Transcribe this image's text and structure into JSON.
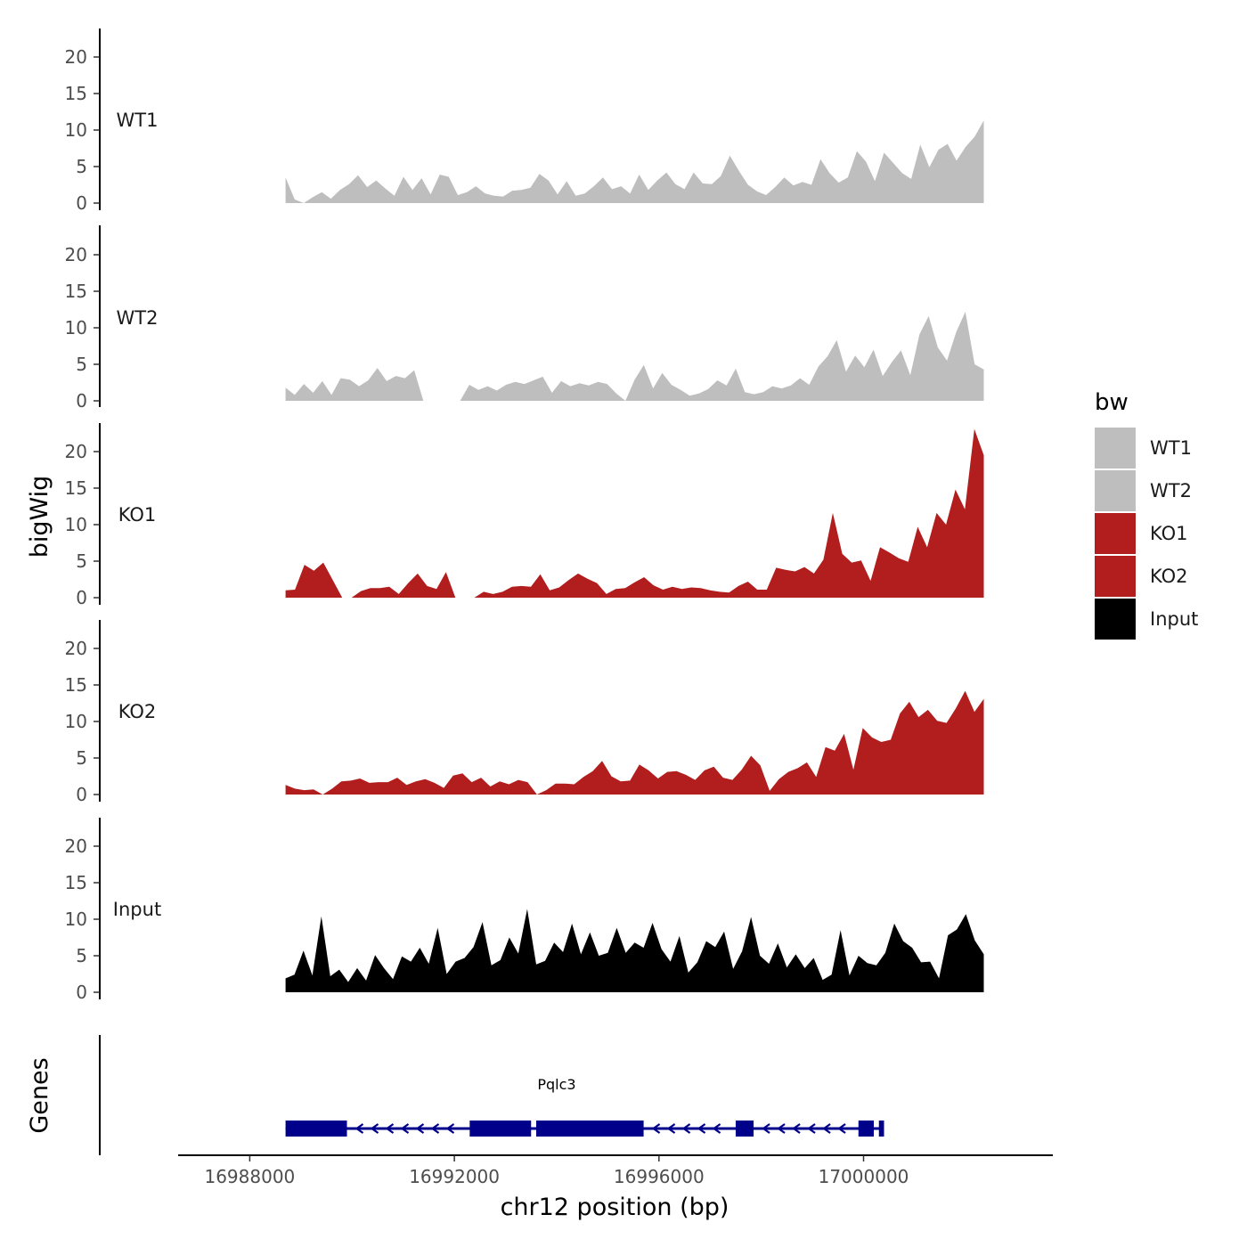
{
  "chart_data": {
    "type": "area",
    "chromosome": "chr12",
    "xlabel": "chr12 position (bp)",
    "ylabel": "bigWig",
    "xlim": [
      16986600,
      17003700
    ],
    "x_ticks": [
      16988000,
      16992000,
      16996000,
      17000000
    ],
    "x_tick_labels": [
      "16988000",
      "16992000",
      "16996000",
      "17000000"
    ],
    "ylim": [
      0,
      24
    ],
    "y_ticks": [
      0,
      5,
      10,
      15,
      20
    ],
    "y_tick_labels": [
      "0",
      "5",
      "10",
      "15",
      "20"
    ],
    "region": [
      16988700,
      17002350
    ],
    "legend": {
      "title": "bw",
      "entries": [
        {
          "label": "WT1",
          "color": "#bebebe"
        },
        {
          "label": "WT2",
          "color": "#bebebe"
        },
        {
          "label": "KO1",
          "color": "#b21e1e"
        },
        {
          "label": "KO2",
          "color": "#b21e1e"
        },
        {
          "label": "Input",
          "color": "#000000"
        }
      ]
    },
    "series": [
      {
        "name": "WT1",
        "color": "#bebebe",
        "values": [
          3.5,
          0.5,
          0,
          0.8,
          1.5,
          0.6,
          1.8,
          2.6,
          3.8,
          2.2,
          3.1,
          2.0,
          1.0,
          3.6,
          1.8,
          3.4,
          1.2,
          3.9,
          3.6,
          1.1,
          1.5,
          2.3,
          1.3,
          1.0,
          0.9,
          1.7,
          1.8,
          2.1,
          4.0,
          3.1,
          1.2,
          3.0,
          1.0,
          1.3,
          2.3,
          3.5,
          1.9,
          2.3,
          1.3,
          3.9,
          1.8,
          3.1,
          4.2,
          2.6,
          1.9,
          4.2,
          2.7,
          2.6,
          3.7,
          6.5,
          4.4,
          2.5,
          1.6,
          1.1,
          2.2,
          3.5,
          2.4,
          2.9,
          2.5,
          6.0,
          4.1,
          2.8,
          3.5,
          7.1,
          5.7,
          3.0,
          6.9,
          5.5,
          4.1,
          3.3,
          8.0,
          4.9,
          7.3,
          8.1,
          5.8,
          7.7,
          9.1,
          11.3
        ]
      },
      {
        "name": "WT2",
        "color": "#bebebe",
        "values": [
          1.8,
          0.8,
          2.3,
          1.1,
          2.7,
          0.8,
          3.1,
          2.9,
          2.0,
          2.8,
          4.5,
          2.7,
          3.4,
          3.1,
          4.2,
          0,
          0,
          0,
          0,
          0,
          2.2,
          1.5,
          2.0,
          1.4,
          2.2,
          2.6,
          2.3,
          2.8,
          3.3,
          1.1,
          2.7,
          2.0,
          2.4,
          2.1,
          2.6,
          2.3,
          1.0,
          0,
          2.9,
          4.9,
          1.7,
          3.8,
          2.2,
          1.5,
          0.7,
          1.0,
          1.6,
          2.8,
          2.1,
          4.4,
          1.2,
          0.9,
          1.2,
          2.0,
          1.7,
          2.1,
          3.1,
          2.2,
          4.7,
          6.1,
          8.3,
          4.0,
          6.2,
          4.6,
          7.0,
          3.4,
          5.3,
          6.9,
          3.5,
          9.1,
          11.6,
          7.3,
          5.5,
          9.4,
          12.2,
          5.0,
          4.3
        ]
      },
      {
        "name": "KO1",
        "color": "#b21e1e",
        "values": [
          1.0,
          1.1,
          4.5,
          3.7,
          4.8,
          2.4,
          0,
          0,
          0.9,
          1.3,
          1.3,
          1.5,
          0.5,
          2.0,
          3.3,
          1.6,
          1.2,
          3.5,
          0,
          0,
          0,
          0.8,
          0.5,
          0.8,
          1.5,
          1.6,
          1.5,
          3.2,
          1.0,
          1.4,
          2.4,
          3.3,
          2.6,
          2.0,
          0.5,
          1.2,
          1.3,
          2.1,
          2.8,
          1.7,
          1.1,
          1.5,
          1.2,
          1.4,
          1.3,
          1.0,
          0.8,
          0.7,
          1.6,
          2.2,
          1.1,
          1.1,
          4.1,
          3.8,
          3.6,
          4.2,
          3.3,
          5.2,
          11.6,
          6.0,
          4.8,
          5.1,
          2.3,
          6.9,
          6.2,
          5.4,
          4.9,
          9.7,
          6.9,
          11.6,
          10.0,
          14.8,
          12.1,
          23.1,
          19.5
        ]
      },
      {
        "name": "KO2",
        "color": "#b21e1e",
        "values": [
          1.3,
          0.8,
          0.6,
          0.7,
          0,
          0.8,
          1.8,
          1.9,
          2.2,
          1.6,
          1.7,
          1.7,
          2.3,
          1.3,
          1.8,
          2.1,
          1.6,
          0.9,
          2.6,
          2.9,
          1.7,
          2.3,
          1.1,
          1.8,
          1.4,
          2.0,
          1.7,
          0,
          0.6,
          1.5,
          1.5,
          1.4,
          2.4,
          3.2,
          4.6,
          2.5,
          1.8,
          1.9,
          4.1,
          3.3,
          2.2,
          3.1,
          3.2,
          2.7,
          2.0,
          3.3,
          3.8,
          2.3,
          2.0,
          3.4,
          5.3,
          4.0,
          0.5,
          2.1,
          3.1,
          3.6,
          4.4,
          2.4,
          6.5,
          6.0,
          8.3,
          3.4,
          9.1,
          7.8,
          7.2,
          7.5,
          11.1,
          12.7,
          10.6,
          11.6,
          10.1,
          9.8,
          11.8,
          14.2,
          11.3,
          13.1
        ]
      },
      {
        "name": "Input",
        "color": "#000000",
        "values": [
          1.9,
          2.4,
          5.7,
          2.3,
          10.4,
          2.2,
          3.1,
          1.4,
          3.3,
          1.6,
          5.1,
          3.3,
          1.8,
          4.9,
          4.2,
          6.1,
          3.9,
          8.8,
          2.5,
          4.2,
          4.7,
          6.2,
          9.6,
          3.7,
          4.4,
          7.5,
          5.3,
          11.4,
          3.8,
          4.3,
          6.8,
          5.5,
          9.4,
          5.2,
          8.2,
          5.0,
          5.4,
          8.8,
          5.4,
          6.8,
          6.1,
          9.5,
          5.9,
          4.2,
          7.7,
          2.7,
          4.1,
          7.0,
          6.2,
          8.3,
          3.2,
          5.6,
          10.3,
          5.0,
          3.9,
          6.7,
          3.4,
          5.2,
          3.3,
          4.7,
          1.7,
          2.4,
          8.5,
          2.3,
          5.0,
          4.0,
          3.7,
          5.4,
          9.4,
          7.0,
          6.1,
          4.1,
          4.2,
          1.9,
          7.8,
          8.6,
          10.7,
          7.1,
          5.2
        ]
      }
    ],
    "gene": {
      "name": "Pqlc3",
      "strand": "-",
      "start": 16988700,
      "end": 17000400,
      "exons": [
        [
          16988700,
          16989900
        ],
        [
          16992300,
          16993500
        ],
        [
          16993600,
          16995700
        ],
        [
          16997500,
          16997850
        ],
        [
          16999900,
          17000200
        ],
        [
          17000300,
          17000400
        ]
      ]
    }
  },
  "panels": {
    "genes_label": "Genes"
  }
}
